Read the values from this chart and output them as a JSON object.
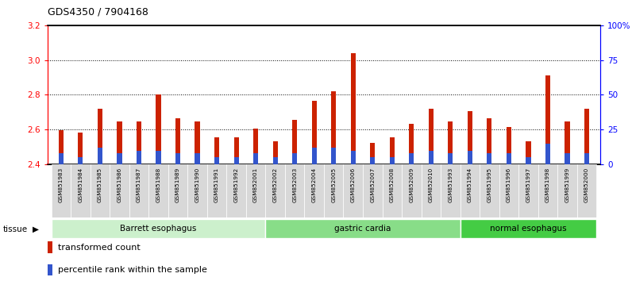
{
  "title": "GDS4350 / 7904168",
  "samples": [
    "GSM851983",
    "GSM851984",
    "GSM851985",
    "GSM851986",
    "GSM851987",
    "GSM851988",
    "GSM851989",
    "GSM851990",
    "GSM851991",
    "GSM851992",
    "GSM852001",
    "GSM852002",
    "GSM852003",
    "GSM852004",
    "GSM852005",
    "GSM852006",
    "GSM852007",
    "GSM852008",
    "GSM852009",
    "GSM852010",
    "GSM851993",
    "GSM851994",
    "GSM851995",
    "GSM851996",
    "GSM851997",
    "GSM851998",
    "GSM851999",
    "GSM852000"
  ],
  "red_values": [
    2.595,
    2.585,
    2.72,
    2.645,
    2.645,
    2.8,
    2.665,
    2.645,
    2.555,
    2.555,
    2.605,
    2.535,
    2.655,
    2.765,
    2.82,
    3.04,
    2.525,
    2.555,
    2.635,
    2.72,
    2.645,
    2.705,
    2.665,
    2.615,
    2.535,
    2.91,
    2.645,
    2.72
  ],
  "blue_pct": [
    8,
    5,
    12,
    8,
    10,
    10,
    8,
    8,
    5,
    5,
    8,
    5,
    8,
    12,
    12,
    10,
    5,
    5,
    8,
    10,
    8,
    10,
    8,
    8,
    5,
    15,
    8,
    8
  ],
  "tissue_groups": [
    {
      "label": "Barrett esophagus",
      "start": 0,
      "end": 11,
      "color": "#ccf0cc"
    },
    {
      "label": "gastric cardia",
      "start": 11,
      "end": 21,
      "color": "#88dd88"
    },
    {
      "label": "normal esophagus",
      "start": 21,
      "end": 28,
      "color": "#44cc44"
    }
  ],
  "ylim_left": [
    2.4,
    3.2
  ],
  "ylim_right": [
    0,
    100
  ],
  "yticks_left": [
    2.4,
    2.6,
    2.8,
    3.0,
    3.2
  ],
  "yticks_right": [
    0,
    25,
    50,
    75,
    100
  ],
  "ytick_labels_right": [
    "0",
    "25",
    "50",
    "75",
    "100%"
  ],
  "bar_bottom": 2.4,
  "bar_width": 0.25,
  "red_color": "#cc2200",
  "blue_color": "#3355cc",
  "tissue_label": "tissue",
  "legend_red": "transformed count",
  "legend_blue": "percentile rank within the sample",
  "label_bg_color": "#d8d8d8"
}
